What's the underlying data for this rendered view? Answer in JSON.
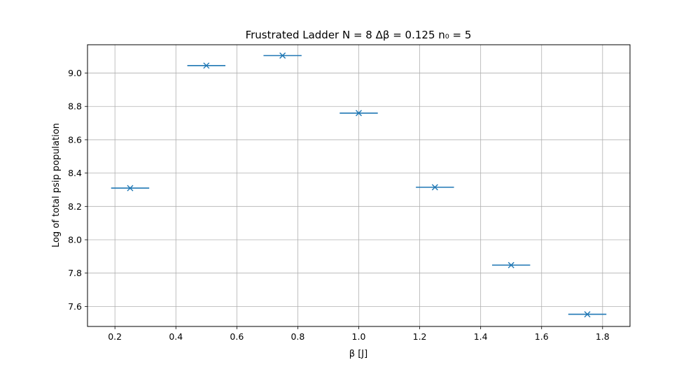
{
  "chart_data": {
    "type": "scatter",
    "title": "Frustrated Ladder N = 8 Δβ = 0.125 n₀ = 5",
    "xlabel": "β [J]",
    "ylabel": "Log of total psip population",
    "xlim": [
      0.11,
      1.89
    ],
    "ylim": [
      7.48,
      9.17
    ],
    "xticks": [
      0.2,
      0.4,
      0.6,
      0.8,
      1.0,
      1.2,
      1.4,
      1.6,
      1.8
    ],
    "yticks": [
      7.6,
      7.8,
      8.0,
      8.2,
      8.4,
      8.6,
      8.8,
      9.0
    ],
    "xtick_labels": [
      "0.2",
      "0.4",
      "0.6",
      "0.8",
      "1.0",
      "1.2",
      "1.4",
      "1.6",
      "1.8"
    ],
    "ytick_labels": [
      "7.6",
      "7.8",
      "8.0",
      "8.2",
      "8.4",
      "8.6",
      "8.8",
      "9.0"
    ],
    "grid": true,
    "marker": "x",
    "color": "#1f77b4",
    "series": [
      {
        "points": [
          {
            "x": 0.25,
            "y": 8.31,
            "xerr": 0.0625
          },
          {
            "x": 0.5,
            "y": 9.045,
            "xerr": 0.0625
          },
          {
            "x": 0.75,
            "y": 9.105,
            "xerr": 0.0625
          },
          {
            "x": 1.0,
            "y": 8.76,
            "xerr": 0.0625
          },
          {
            "x": 1.25,
            "y": 8.315,
            "xerr": 0.0625
          },
          {
            "x": 1.5,
            "y": 7.848,
            "xerr": 0.0625
          },
          {
            "x": 1.75,
            "y": 7.553,
            "xerr": 0.0625
          }
        ]
      }
    ]
  }
}
